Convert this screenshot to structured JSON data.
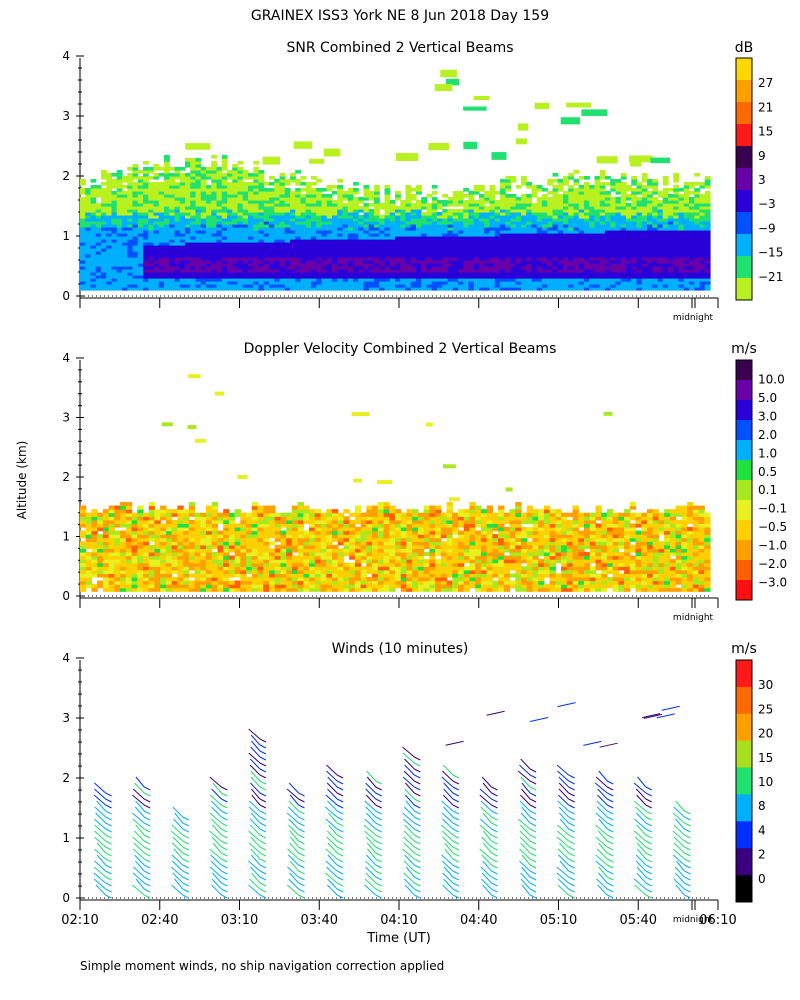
{
  "figure": {
    "title": "GRAINEX ISS3 York NE   8 Jun 2018 Day 159",
    "ylabel": "Altitude (km)",
    "xlabel": "Time (UT)",
    "footnote": "Simple moment winds, no ship navigation correction applied",
    "midnight_label": "midnight"
  },
  "chart_data": [
    {
      "type": "heatmap",
      "title": "SNR Combined 2 Vertical Beams",
      "ylim": [
        0,
        4
      ],
      "yticks": [
        "0",
        "1",
        "2",
        "3",
        "4"
      ],
      "x_range": [
        "02:10",
        "06:10"
      ],
      "colorbar": {
        "unit": "dB",
        "labels": [
          "27",
          "21",
          "15",
          "9",
          "3",
          "−3",
          "−9",
          "−15",
          "−21"
        ],
        "colors": [
          "#ffd800",
          "#ffa000",
          "#ff6a00",
          "#ff1a1a",
          "#3a0050",
          "#6a00a8",
          "#2a00d8",
          "#0050ff",
          "#00b0ff",
          "#20e070",
          "#b8f020"
        ]
      },
      "profile_summary": {
        "signal_top_km": [
          1.85,
          2.3,
          2.0,
          1.7,
          1.7,
          2.0,
          1.9
        ],
        "strong_layer_km": [
          0.25,
          0.85
        ],
        "times": [
          "02:10",
          "02:50",
          "03:30",
          "04:00",
          "04:30",
          "05:10",
          "06:05"
        ]
      }
    },
    {
      "type": "heatmap",
      "title": "Doppler Velocity Combined 2 Vertical Beams",
      "ylim": [
        0,
        4
      ],
      "yticks": [
        "0",
        "1",
        "2",
        "3",
        "4"
      ],
      "x_range": [
        "02:10",
        "06:10"
      ],
      "colorbar": {
        "unit": "m/s",
        "labels": [
          "10.0",
          "5.0",
          "3.0",
          "2.0",
          "1.0",
          "0.5",
          "0.1",
          "−0.1",
          "−0.5",
          "−1.0",
          "−2.0",
          "−3.0"
        ],
        "colors": [
          "#3a0050",
          "#6a00a8",
          "#2a00d8",
          "#0050ff",
          "#00b0ff",
          "#20e040",
          "#a8e820",
          "#e8f020",
          "#ffd000",
          "#ffa000",
          "#ff6000",
          "#ff1010"
        ]
      },
      "layer_top_km": 1.45
    },
    {
      "type": "wind_barbs",
      "title": "Winds (10 minutes)",
      "ylim": [
        0,
        4
      ],
      "yticks": [
        "0",
        "1",
        "2",
        "3",
        "4"
      ],
      "x_ticks": [
        "02:10",
        "02:40",
        "03:10",
        "03:40",
        "04:10",
        "04:40",
        "05:10",
        "05:40",
        "06:10"
      ],
      "colorbar": {
        "unit": "m/s",
        "labels": [
          "30",
          "25",
          "20",
          "15",
          "10",
          "8",
          "4",
          "2",
          "0"
        ],
        "colors": [
          "#ff1a1a",
          "#ff6a00",
          "#ffa000",
          "#a8e020",
          "#20e070",
          "#00b0ff",
          "#0030ff",
          "#3a0080",
          "#000000"
        ]
      },
      "profile_tops_km": [
        1.8,
        1.9,
        1.4,
        1.9,
        2.7,
        1.8,
        2.1,
        2.0,
        2.4,
        2.1,
        1.9,
        2.2,
        2.1,
        2.0,
        1.9,
        1.5
      ]
    }
  ]
}
